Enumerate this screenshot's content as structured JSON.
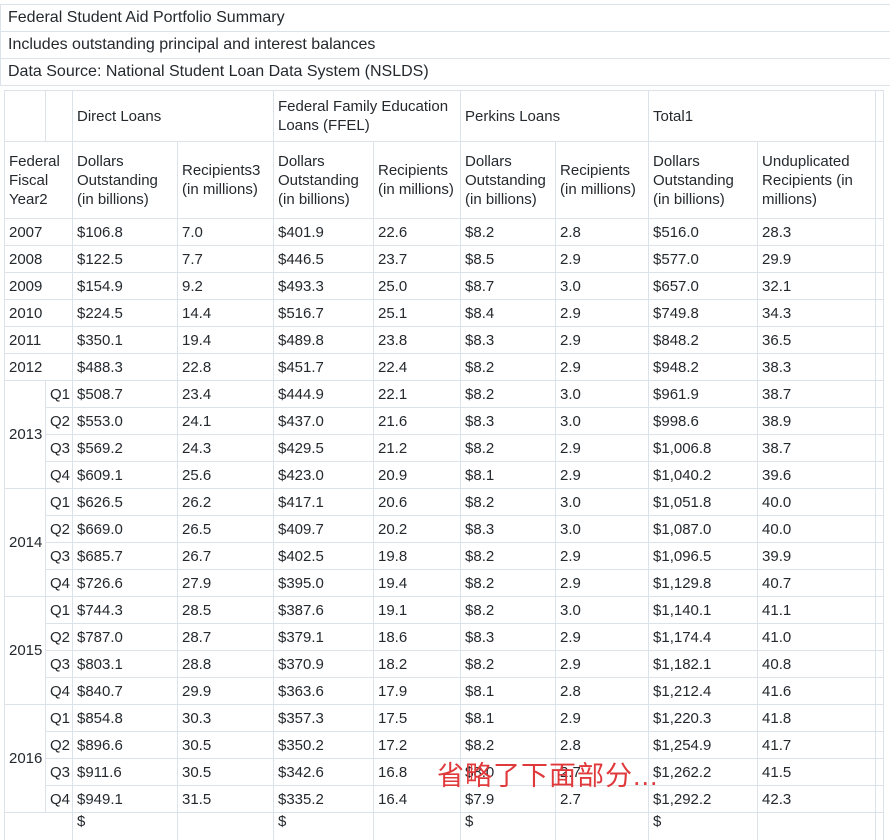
{
  "meta": {
    "title": "Federal Student Aid Portfolio Summary",
    "subtitle": "Includes outstanding principal and interest balances",
    "source": "Data Source: National Student Loan Data System (NSLDS)"
  },
  "annotation": {
    "text": "省略了下面部分...",
    "color": "#e0393c"
  },
  "colors": {
    "border": "#dce2e9",
    "text": "#24292e",
    "background": "#ffffff"
  },
  "table": {
    "groups": [
      "Direct Loans",
      "Federal Family Education Loans (FFEL)",
      "Perkins Loans",
      "Total1"
    ],
    "columns": [
      "Federal Fiscal Year2",
      "Dollars Outstanding (in billions)",
      "Recipients3 (in millions)",
      "Dollars Outstanding (in billions)",
      "Recipients (in millions)",
      "Dollars Outstanding (in billions)",
      "Recipients (in millions)",
      "Dollars Outstanding (in billions)",
      "Unduplicated Recipients (in millions)"
    ],
    "rows": [
      {
        "year": "2007",
        "rowspan": 1,
        "quarter": null,
        "cells": [
          "$106.8",
          "7.0",
          "$401.9",
          "22.6",
          "$8.2",
          "2.8",
          "$516.0",
          "28.3"
        ]
      },
      {
        "year": "2008",
        "rowspan": 1,
        "quarter": null,
        "cells": [
          "$122.5",
          "7.7",
          "$446.5",
          "23.7",
          "$8.5",
          "2.9",
          "$577.0",
          "29.9"
        ]
      },
      {
        "year": "2009",
        "rowspan": 1,
        "quarter": null,
        "cells": [
          "$154.9",
          "9.2",
          "$493.3",
          "25.0",
          "$8.7",
          "3.0",
          "$657.0",
          "32.1"
        ]
      },
      {
        "year": "2010",
        "rowspan": 1,
        "quarter": null,
        "cells": [
          "$224.5",
          "14.4",
          "$516.7",
          "25.1",
          "$8.4",
          "2.9",
          "$749.8",
          "34.3"
        ]
      },
      {
        "year": "2011",
        "rowspan": 1,
        "quarter": null,
        "cells": [
          "$350.1",
          "19.4",
          "$489.8",
          "23.8",
          "$8.3",
          "2.9",
          "$848.2",
          "36.5"
        ]
      },
      {
        "year": "2012",
        "rowspan": 1,
        "quarter": null,
        "cells": [
          "$488.3",
          "22.8",
          "$451.7",
          "22.4",
          "$8.2",
          "2.9",
          "$948.2",
          "38.3"
        ]
      },
      {
        "year": "2013",
        "rowspan": 4,
        "quarter": "Q1",
        "cells": [
          "$508.7",
          "23.4",
          "$444.9",
          "22.1",
          "$8.2",
          "3.0",
          "$961.9",
          "38.7"
        ]
      },
      {
        "quarter": "Q2",
        "cells": [
          "$553.0",
          "24.1",
          "$437.0",
          "21.6",
          "$8.3",
          "3.0",
          "$998.6",
          "38.9"
        ]
      },
      {
        "quarter": "Q3",
        "cells": [
          "$569.2",
          "24.3",
          "$429.5",
          "21.2",
          "$8.2",
          "2.9",
          "$1,006.8",
          "38.7"
        ]
      },
      {
        "quarter": "Q4",
        "cells": [
          "$609.1",
          "25.6",
          "$423.0",
          "20.9",
          "$8.1",
          "2.9",
          "$1,040.2",
          "39.6"
        ]
      },
      {
        "year": "2014",
        "rowspan": 4,
        "quarter": "Q1",
        "cells": [
          "$626.5",
          "26.2",
          "$417.1",
          "20.6",
          "$8.2",
          "3.0",
          "$1,051.8",
          "40.0"
        ]
      },
      {
        "quarter": "Q2",
        "cells": [
          "$669.0",
          "26.5",
          "$409.7",
          "20.2",
          "$8.3",
          "3.0",
          "$1,087.0",
          "40.0"
        ]
      },
      {
        "quarter": "Q3",
        "cells": [
          "$685.7",
          "26.7",
          "$402.5",
          "19.8",
          "$8.2",
          "2.9",
          "$1,096.5",
          "39.9"
        ]
      },
      {
        "quarter": "Q4",
        "cells": [
          "$726.6",
          "27.9",
          "$395.0",
          "19.4",
          "$8.2",
          "2.9",
          "$1,129.8",
          "40.7"
        ]
      },
      {
        "year": "2015",
        "rowspan": 4,
        "quarter": "Q1",
        "cells": [
          "$744.3",
          "28.5",
          "$387.6",
          "19.1",
          "$8.2",
          "3.0",
          "$1,140.1",
          "41.1"
        ]
      },
      {
        "quarter": "Q2",
        "cells": [
          "$787.0",
          "28.7",
          "$379.1",
          "18.6",
          "$8.3",
          "2.9",
          "$1,174.4",
          "41.0"
        ]
      },
      {
        "quarter": "Q3",
        "cells": [
          "$803.1",
          "28.8",
          "$370.9",
          "18.2",
          "$8.2",
          "2.9",
          "$1,182.1",
          "40.8"
        ]
      },
      {
        "quarter": "Q4",
        "cells": [
          "$840.7",
          "29.9",
          "$363.6",
          "17.9",
          "$8.1",
          "2.8",
          "$1,212.4",
          "41.6"
        ]
      },
      {
        "year": "2016",
        "rowspan": 4,
        "quarter": "Q1",
        "cells": [
          "$854.8",
          "30.3",
          "$357.3",
          "17.5",
          "$8.1",
          "2.9",
          "$1,220.3",
          "41.8"
        ]
      },
      {
        "quarter": "Q2",
        "cells": [
          "$896.6",
          "30.5",
          "$350.2",
          "17.2",
          "$8.2",
          "2.8",
          "$1,254.9",
          "41.7"
        ]
      },
      {
        "quarter": "Q3",
        "cells": [
          "$911.6",
          "30.5",
          "$342.6",
          "16.8",
          "$8.0",
          "2.7",
          "$1,262.2",
          "41.5"
        ]
      },
      {
        "quarter": "Q4",
        "cells": [
          "$949.1",
          "31.5",
          "$335.2",
          "16.4",
          "$7.9",
          "2.7",
          "$1,292.2",
          "42.3"
        ]
      }
    ],
    "partial_row": {
      "cells": [
        "$",
        "",
        "$",
        "",
        "$",
        "",
        "$",
        ""
      ]
    }
  }
}
